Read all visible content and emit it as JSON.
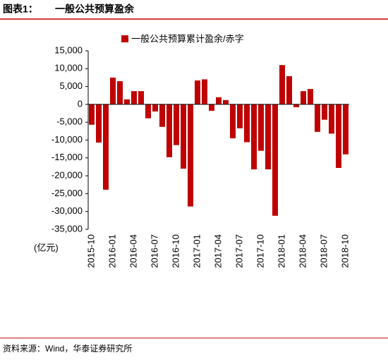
{
  "header": {
    "label": "图表1：",
    "title": "一般公共预算盈余"
  },
  "source": "资料来源：Wind，华泰证券研究所",
  "chart_data": {
    "type": "bar",
    "unit_label": "(亿元)",
    "categories": [
      "2015-10",
      null,
      null,
      "2016-01",
      null,
      null,
      "2016-04",
      null,
      null,
      "2016-07",
      null,
      null,
      "2016-10",
      null,
      null,
      "2017-01",
      null,
      null,
      "2017-04",
      null,
      null,
      "2017-07",
      null,
      null,
      "2017-10",
      null,
      null,
      "2018-01",
      null,
      null,
      "2018-04",
      null,
      null,
      "2018-07",
      null,
      null,
      "2018-10"
    ],
    "series": [
      {
        "name": "一般公共预算累计盈余/赤字",
        "color": "#c00000",
        "values": [
          -5700,
          -10700,
          -23900,
          7500,
          6500,
          1400,
          3700,
          3700,
          -3900,
          -2000,
          -6300,
          -14800,
          -11400,
          -18000,
          -28600,
          6700,
          7000,
          -1800,
          2000,
          1200,
          -9500,
          -6700,
          -10600,
          -18200,
          -13000,
          -18200,
          -31200,
          11000,
          7900,
          -800,
          3700,
          4300,
          -7700,
          -4300,
          -8200,
          -17800,
          -14000
        ]
      }
    ],
    "ylim": [
      -35000,
      15000
    ],
    "yticks": [
      {
        "value": 15000,
        "label": "15,000"
      },
      {
        "value": 10000,
        "label": "10,000"
      },
      {
        "value": 5000,
        "label": "5,000"
      },
      0,
      {
        "value": -5000,
        "label": "-5,000"
      },
      {
        "value": -10000,
        "label": "-10,000"
      },
      {
        "value": -15000,
        "label": "-15,000"
      },
      {
        "value": -20000,
        "label": "-20,000"
      },
      {
        "value": -25000,
        "label": "-25,000"
      },
      {
        "value": -30000,
        "label": "-30,000"
      },
      {
        "value": -35000,
        "label": "-35,000"
      }
    ],
    "legend": "top"
  }
}
